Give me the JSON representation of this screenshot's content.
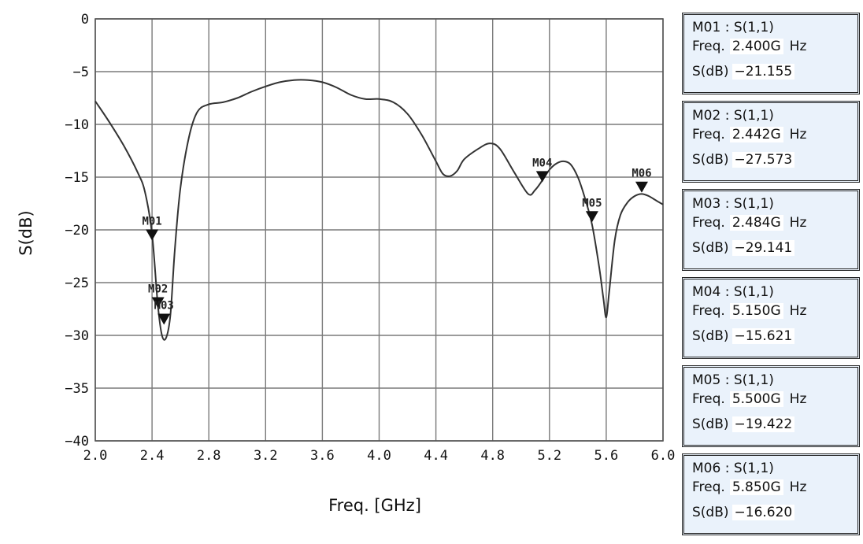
{
  "chart_data": {
    "type": "line",
    "xlabel": "Freq. [GHz]",
    "ylabel": "S(dB)",
    "xlim": [
      2.0,
      6.0
    ],
    "ylim": [
      -40,
      0
    ],
    "xticks": [
      "2.0",
      "2.4",
      "2.8",
      "3.2",
      "3.6",
      "4.0",
      "4.4",
      "4.8",
      "5.2",
      "5.6",
      "6.0"
    ],
    "yticks": [
      "0",
      "-5",
      "-10",
      "-15",
      "-20",
      "-25",
      "-30",
      "-35",
      "-40"
    ],
    "grid": true,
    "series": [
      {
        "x": [
          2.0,
          2.1,
          2.2,
          2.3,
          2.35,
          2.4,
          2.44,
          2.47,
          2.5,
          2.53,
          2.56,
          2.6,
          2.66,
          2.72,
          2.8,
          2.9,
          3.0,
          3.1,
          3.2,
          3.3,
          3.4,
          3.5,
          3.6,
          3.7,
          3.8,
          3.9,
          4.0,
          4.1,
          4.2,
          4.3,
          4.4,
          4.45,
          4.5,
          4.55,
          4.6,
          4.7,
          4.78,
          4.85,
          4.95,
          5.05,
          5.1,
          5.15,
          5.2,
          5.25,
          5.3,
          5.35,
          5.4,
          5.45,
          5.5,
          5.55,
          5.58,
          5.6,
          5.62,
          5.66,
          5.7,
          5.75,
          5.8,
          5.85,
          5.9,
          5.95,
          6.0
        ],
        "y": [
          -7.8,
          -9.8,
          -12.0,
          -14.6,
          -16.4,
          -20.4,
          -27.0,
          -30.0,
          -30.2,
          -28.0,
          -22.0,
          -16.0,
          -11.2,
          -8.8,
          -8.1,
          -7.9,
          -7.5,
          -6.9,
          -6.4,
          -6.0,
          -5.8,
          -5.8,
          -6.0,
          -6.5,
          -7.2,
          -7.6,
          -7.6,
          -7.9,
          -9.0,
          -11.0,
          -13.5,
          -14.7,
          -14.9,
          -14.4,
          -13.3,
          -12.3,
          -11.8,
          -12.3,
          -14.5,
          -16.6,
          -16.2,
          -15.3,
          -14.3,
          -13.7,
          -13.5,
          -13.8,
          -15.0,
          -17.0,
          -19.5,
          -23.5,
          -26.5,
          -28.3,
          -26.0,
          -21.0,
          -18.6,
          -17.4,
          -16.8,
          -16.6,
          -16.8,
          -17.2,
          -17.6
        ]
      }
    ],
    "markers": [
      {
        "label": "M01",
        "x": 2.4,
        "y": -21.155
      },
      {
        "label": "M02",
        "x": 2.442,
        "y": -27.573
      },
      {
        "label": "M03",
        "x": 2.484,
        "y": -29.141
      },
      {
        "label": "M04",
        "x": 5.15,
        "y": -15.621
      },
      {
        "label": "M05",
        "x": 5.5,
        "y": -19.422
      },
      {
        "label": "M06",
        "x": 5.85,
        "y": -16.62
      }
    ]
  },
  "marker_panel": [
    {
      "title": "M01 : S(1,1)",
      "freq_label": "Freq.",
      "freq": "2.400G",
      "unit": "Hz",
      "s_label": "S(dB)",
      "s_value": "−21.155"
    },
    {
      "title": "M02 : S(1,1)",
      "freq_label": "Freq.",
      "freq": "2.442G",
      "unit": "Hz",
      "s_label": "S(dB)",
      "s_value": "−27.573"
    },
    {
      "title": "M03 : S(1,1)",
      "freq_label": "Freq.",
      "freq": "2.484G",
      "unit": "Hz",
      "s_label": "S(dB)",
      "s_value": "−29.141"
    },
    {
      "title": "M04 : S(1,1)",
      "freq_label": "Freq.",
      "freq": "5.150G",
      "unit": "Hz",
      "s_label": "S(dB)",
      "s_value": "−15.621"
    },
    {
      "title": "M05 : S(1,1)",
      "freq_label": "Freq.",
      "freq": "5.500G",
      "unit": "Hz",
      "s_label": "S(dB)",
      "s_value": "−19.422"
    },
    {
      "title": "M06 : S(1,1)",
      "freq_label": "Freq.",
      "freq": "5.850G",
      "unit": "Hz",
      "s_label": "S(dB)",
      "s_value": "−16.620"
    }
  ],
  "colors": {
    "curve": "#333333",
    "grid": "#7a7a7a",
    "marker": "#111111",
    "panel_bg": "#eaf2fb"
  }
}
